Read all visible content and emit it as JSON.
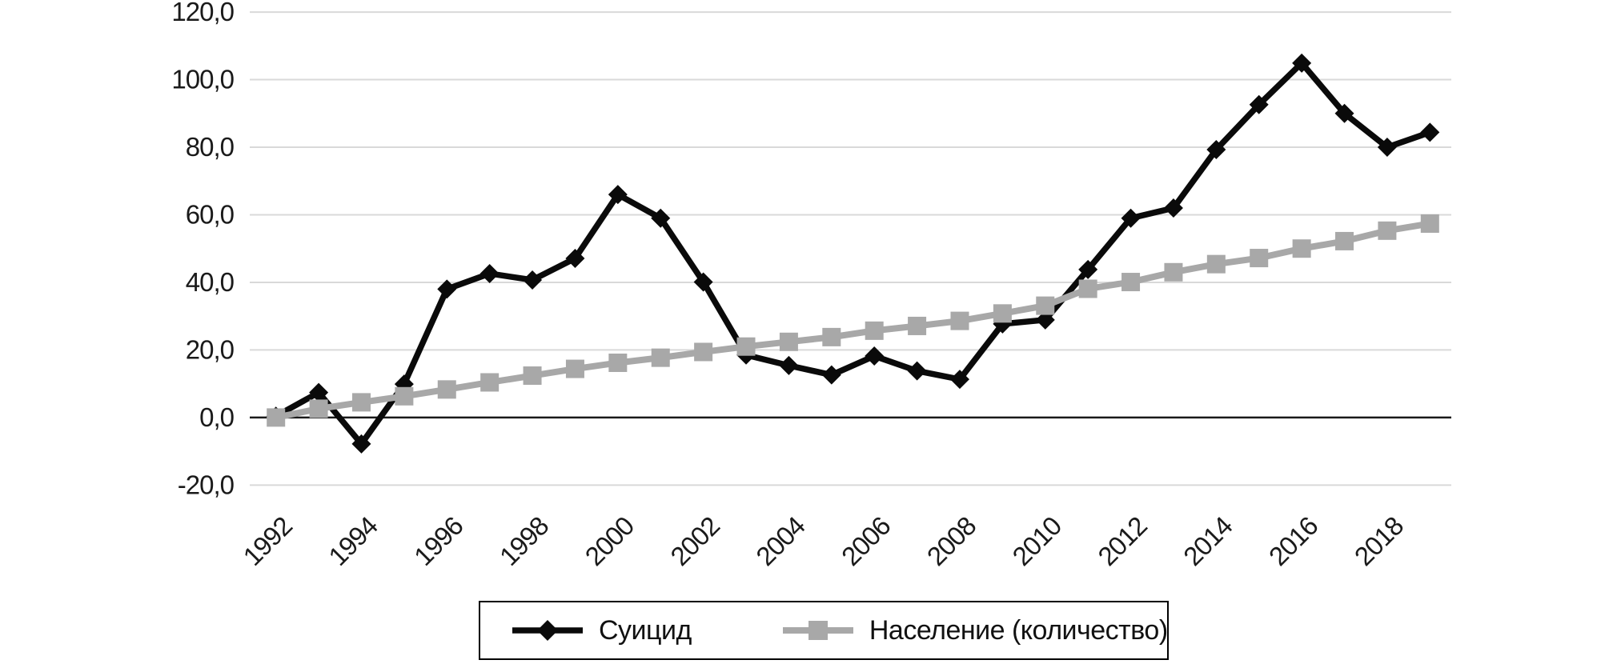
{
  "chart_data": {
    "type": "line",
    "title": "",
    "xlabel": "",
    "ylabel": "",
    "x": [
      1992,
      1993,
      1994,
      1995,
      1996,
      1997,
      1998,
      1999,
      2000,
      2001,
      2002,
      2003,
      2004,
      2005,
      2006,
      2007,
      2008,
      2009,
      2010,
      2011,
      2012,
      2013,
      2014,
      2015,
      2016,
      2017,
      2018,
      2019
    ],
    "x_tick_labels": [
      "1992",
      "1994",
      "1996",
      "1998",
      "2000",
      "2002",
      "2004",
      "2006",
      "2008",
      "2010",
      "2012",
      "2014",
      "2016",
      "2018"
    ],
    "ylim": [
      -20,
      120
    ],
    "yticks": [
      {
        "v": 120,
        "label": "120,0"
      },
      {
        "v": 100,
        "label": "100,0"
      },
      {
        "v": 80,
        "label": "80,0"
      },
      {
        "v": 60,
        "label": "60,0"
      },
      {
        "v": 40,
        "label": "40,0"
      },
      {
        "v": 20,
        "label": "20,0"
      },
      {
        "v": 0,
        "label": "0,0"
      },
      {
        "v": -20,
        "label": "-20,0"
      }
    ],
    "grid": "horizontal",
    "legend_position": "bottom-center-boxed",
    "series": [
      {
        "name": "Суицид",
        "color": "#0a0a0a",
        "marker": "diamond",
        "line_width": 7.5,
        "values": [
          0.4,
          7.4,
          -7.8,
          9.9,
          38.0,
          42.6,
          40.7,
          47.1,
          66.0,
          59.0,
          40.1,
          18.5,
          15.4,
          12.6,
          18.2,
          13.8,
          11.3,
          27.7,
          28.9,
          43.8,
          59.0,
          62.0,
          79.3,
          92.6,
          104.9,
          90.0,
          80.0,
          84.4
        ]
      },
      {
        "name": "Население (количество)",
        "color": "#a8a8a8",
        "marker": "square",
        "line_width": 8,
        "values": [
          0.0,
          2.6,
          4.5,
          6.3,
          8.3,
          10.4,
          12.4,
          14.4,
          16.2,
          17.7,
          19.4,
          21.0,
          22.4,
          23.8,
          25.7,
          27.1,
          28.6,
          30.8,
          33.1,
          38.1,
          40.1,
          43.0,
          45.4,
          47.2,
          50.0,
          52.2,
          55.3,
          57.4
        ]
      }
    ]
  },
  "legend": {
    "items": [
      {
        "label": "Суицид"
      },
      {
        "label": "Население (количество)"
      }
    ]
  },
  "colors": {
    "grid": "#d9d9d9",
    "axis": "#1a1a1a",
    "background": "#ffffff",
    "series1": "#0a0a0a",
    "series2": "#a8a8a8"
  }
}
